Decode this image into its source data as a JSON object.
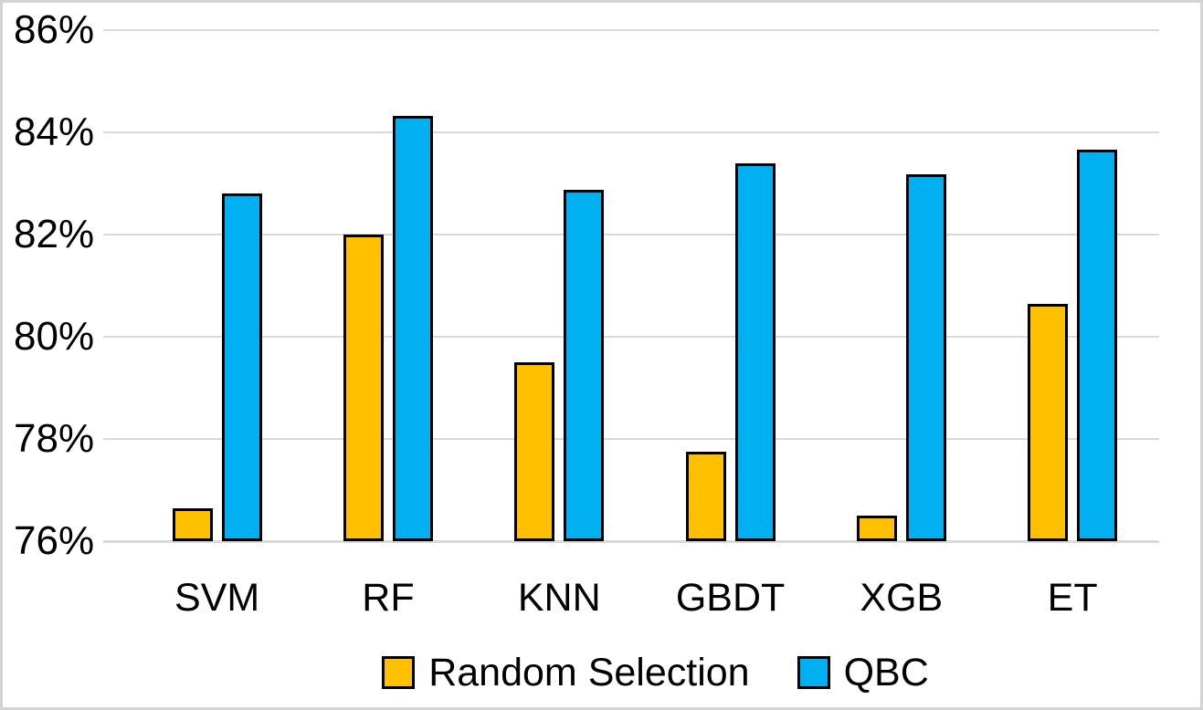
{
  "chart_data": {
    "type": "bar",
    "categories": [
      "SVM",
      "RF",
      "KNN",
      "GBDT",
      "XGB",
      "ET"
    ],
    "series": [
      {
        "name": "Random Selection",
        "color": "#FFC000",
        "values": [
          76.65,
          82.0,
          79.5,
          77.75,
          76.5,
          80.65
        ]
      },
      {
        "name": "QBC",
        "color": "#00B0F0",
        "values": [
          82.8,
          84.33,
          82.88,
          83.4,
          83.17,
          83.66
        ]
      }
    ],
    "ylim": [
      76,
      86
    ],
    "ytick_step": 2,
    "ytick_labels": [
      "76%",
      "78%",
      "80%",
      "82%",
      "84%",
      "86%"
    ],
    "grid": true,
    "legend_position": "bottom"
  },
  "colors": {
    "series_random_selection": "#FFC000",
    "series_qbc": "#00B0F0",
    "gridline": "#D9D9D9",
    "bar_outline": "#000000",
    "frame_border": "#D4D4D4"
  }
}
